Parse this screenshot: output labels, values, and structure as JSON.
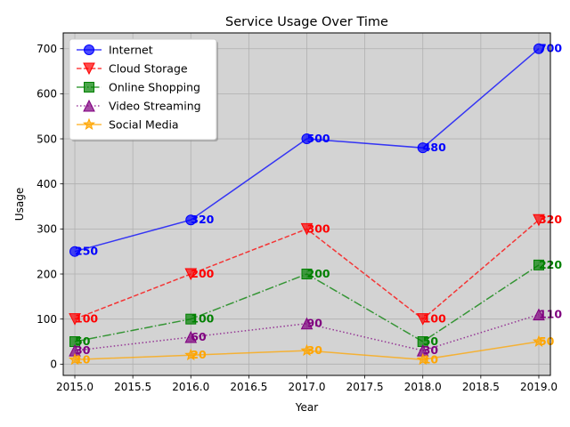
{
  "chart_data": {
    "type": "line",
    "title": "Service Usage Over Time",
    "xlabel": "Year",
    "ylabel": "Usage",
    "xlim": [
      2014.9,
      2019.1
    ],
    "ylim": [
      -25,
      735
    ],
    "xticks": [
      2015.0,
      2015.5,
      2016.0,
      2016.5,
      2017.0,
      2017.5,
      2018.0,
      2018.5,
      2019.0
    ],
    "xtick_labels": [
      "2015.0",
      "2015.5",
      "2016.0",
      "2016.5",
      "2017.0",
      "2017.5",
      "2018.0",
      "2018.5",
      "2019.0"
    ],
    "yticks": [
      0,
      100,
      200,
      300,
      400,
      500,
      600,
      700
    ],
    "ytick_labels": [
      "0",
      "100",
      "200",
      "300",
      "400",
      "500",
      "600",
      "700"
    ],
    "grid": true,
    "legend_position": "upper-left",
    "background": "#d3d3d3",
    "x": [
      2015,
      2016,
      2017,
      2018,
      2019
    ],
    "series": [
      {
        "name": "Internet",
        "values": [
          250,
          320,
          500,
          480,
          700
        ],
        "color": "#0000ff",
        "marker": "circle",
        "linestyle": "solid",
        "labels": [
          "250",
          "320",
          "500",
          "480",
          "700"
        ]
      },
      {
        "name": "Cloud Storage",
        "values": [
          100,
          200,
          300,
          100,
          320
        ],
        "color": "#ff0000",
        "marker": "triangle-down",
        "linestyle": "dashed",
        "labels": [
          "100",
          "200",
          "300",
          "100",
          "320"
        ]
      },
      {
        "name": "Online Shopping",
        "values": [
          50,
          100,
          200,
          50,
          220
        ],
        "color": "#008000",
        "marker": "square",
        "linestyle": "dashdot",
        "labels": [
          "50",
          "100",
          "200",
          "50",
          "220"
        ]
      },
      {
        "name": "Video Streaming",
        "values": [
          30,
          60,
          90,
          30,
          110
        ],
        "color": "#800080",
        "marker": "triangle-up",
        "linestyle": "dotted",
        "labels": [
          "30",
          "60",
          "90",
          "30",
          "110"
        ]
      },
      {
        "name": "Social Media",
        "values": [
          10,
          20,
          30,
          10,
          50
        ],
        "color": "#ffa500",
        "marker": "star",
        "linestyle": "solid",
        "labels": [
          "10",
          "20",
          "30",
          "10",
          "50"
        ]
      }
    ]
  }
}
